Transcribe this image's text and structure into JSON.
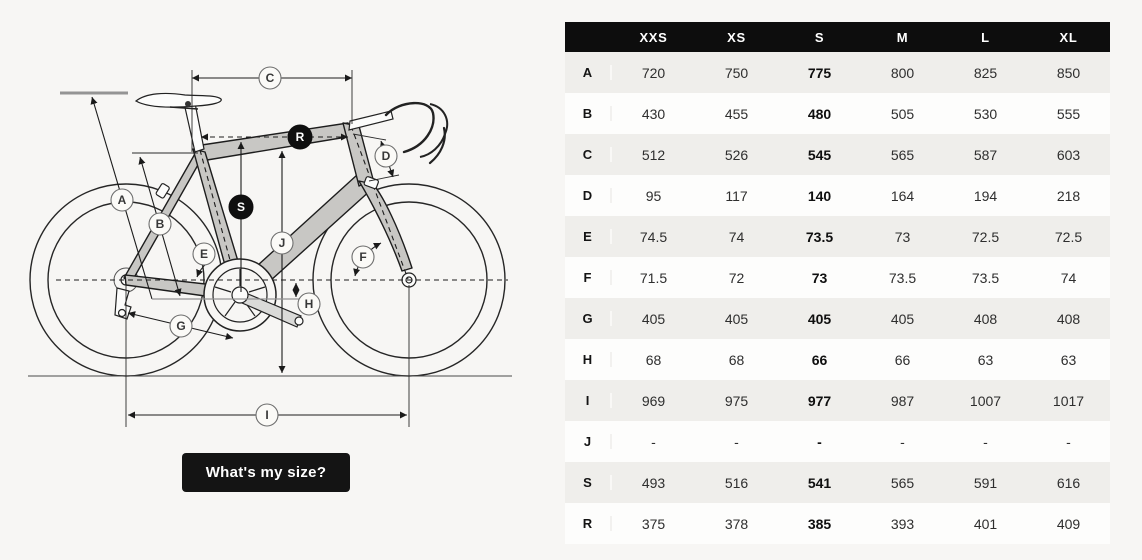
{
  "page": {
    "background": "#f7f6f4"
  },
  "diagram": {
    "badges": [
      {
        "letter": "A",
        "style": "light"
      },
      {
        "letter": "B",
        "style": "light"
      },
      {
        "letter": "C",
        "style": "light"
      },
      {
        "letter": "D",
        "style": "light"
      },
      {
        "letter": "E",
        "style": "light"
      },
      {
        "letter": "F",
        "style": "light"
      },
      {
        "letter": "G",
        "style": "light"
      },
      {
        "letter": "H",
        "style": "light"
      },
      {
        "letter": "I",
        "style": "light"
      },
      {
        "letter": "J",
        "style": "light"
      },
      {
        "letter": "S",
        "style": "dark"
      },
      {
        "letter": "R",
        "style": "dark"
      }
    ],
    "button": {
      "label": "What's my size?"
    }
  },
  "table": {
    "columns": [
      "XXS",
      "XS",
      "S",
      "M",
      "L",
      "XL"
    ],
    "highlighted_column": "S",
    "rows": [
      {
        "label": "A",
        "values": [
          "720",
          "750",
          "775",
          "800",
          "825",
          "850"
        ]
      },
      {
        "label": "B",
        "values": [
          "430",
          "455",
          "480",
          "505",
          "530",
          "555"
        ]
      },
      {
        "label": "C",
        "values": [
          "512",
          "526",
          "545",
          "565",
          "587",
          "603"
        ]
      },
      {
        "label": "D",
        "values": [
          "95",
          "117",
          "140",
          "164",
          "194",
          "218"
        ]
      },
      {
        "label": "E",
        "values": [
          "74.5",
          "74",
          "73.5",
          "73",
          "72.5",
          "72.5"
        ]
      },
      {
        "label": "F",
        "values": [
          "71.5",
          "72",
          "73",
          "73.5",
          "73.5",
          "74"
        ]
      },
      {
        "label": "G",
        "values": [
          "405",
          "405",
          "405",
          "405",
          "408",
          "408"
        ]
      },
      {
        "label": "H",
        "values": [
          "68",
          "68",
          "66",
          "66",
          "63",
          "63"
        ]
      },
      {
        "label": "I",
        "values": [
          "969",
          "975",
          "977",
          "987",
          "1007",
          "1017"
        ]
      },
      {
        "label": "J",
        "values": [
          "-",
          "-",
          "-",
          "-",
          "-",
          "-"
        ]
      },
      {
        "label": "S",
        "values": [
          "493",
          "516",
          "541",
          "565",
          "591",
          "616"
        ]
      },
      {
        "label": "R",
        "values": [
          "375",
          "378",
          "385",
          "393",
          "401",
          "409"
        ]
      }
    ],
    "colors": {
      "header_bg": "#0d0d0d",
      "header_text": "#ffffff",
      "row_alt_bg": "#efeeeb",
      "row_bg": "#fdfdfc",
      "accent_badge": "#0f0f0f"
    }
  },
  "chart_data": {
    "type": "table",
    "columns": [
      "XXS",
      "XS",
      "S",
      "M",
      "L",
      "XL"
    ],
    "row_labels": [
      "A",
      "B",
      "C",
      "D",
      "E",
      "F",
      "G",
      "H",
      "I",
      "J",
      "S",
      "R"
    ],
    "rows": [
      [
        "720",
        "750",
        "775",
        "800",
        "825",
        "850"
      ],
      [
        "430",
        "455",
        "480",
        "505",
        "530",
        "555"
      ],
      [
        "512",
        "526",
        "545",
        "565",
        "587",
        "603"
      ],
      [
        "95",
        "117",
        "140",
        "164",
        "194",
        "218"
      ],
      [
        "74.5",
        "74",
        "73.5",
        "73",
        "72.5",
        "72.5"
      ],
      [
        "71.5",
        "72",
        "73",
        "73.5",
        "73.5",
        "74"
      ],
      [
        "405",
        "405",
        "405",
        "405",
        "408",
        "408"
      ],
      [
        "68",
        "68",
        "66",
        "66",
        "63",
        "63"
      ],
      [
        "969",
        "975",
        "977",
        "987",
        "1007",
        "1017"
      ],
      [
        "-",
        "-",
        "-",
        "-",
        "-",
        "-"
      ],
      [
        "493",
        "516",
        "541",
        "565",
        "591",
        "616"
      ],
      [
        "375",
        "378",
        "385",
        "393",
        "401",
        "409"
      ]
    ],
    "highlighted_column": "S"
  }
}
